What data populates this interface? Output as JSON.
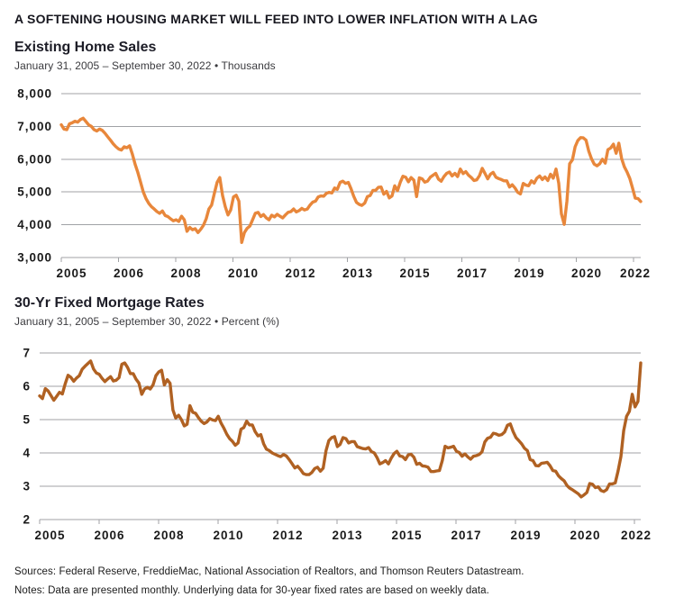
{
  "page": {
    "title": "A SOFTENING HOUSING MARKET WILL FEED INTO LOWER INFLATION WITH A LAG",
    "footer": {
      "sources": "Sources: Federal Reserve, FreddieMac, National Association of Realtors, and Thomson Reuters Datastream.",
      "notes": "Notes: Data are presented monthly. Underlying data for 30-year fixed rates are based on weekly data."
    }
  },
  "colors": {
    "grid": "#a0a2a5",
    "axis_text": "#1a1a1a",
    "home_sales_line": "#e8873b",
    "mortgage_line": "#b06122"
  },
  "chart_data": [
    {
      "type": "line",
      "title": "Existing Home Sales",
      "subtitle": "January 31, 2005 – September 30, 2022 • Thousands",
      "unit": "Thousands",
      "frequency": "monthly",
      "x_start": "2005-01",
      "x_end": "2022-09",
      "grid": true,
      "legend": "none",
      "ylim": [
        3000,
        8000
      ],
      "y_tick_labels": [
        "8,000",
        "7,000",
        "6,000",
        "5,000",
        "4,000",
        "3,000"
      ],
      "x_tick_labels": [
        "2005",
        "2006",
        "2008",
        "2010",
        "2012",
        "2013",
        "2015",
        "2017",
        "2019",
        "2020",
        "2022"
      ],
      "line_color": "#e8873b",
      "values": [
        7050,
        6920,
        6900,
        7080,
        7110,
        7160,
        7130,
        7210,
        7250,
        7150,
        7050,
        7000,
        6900,
        6860,
        6920,
        6880,
        6790,
        6680,
        6580,
        6470,
        6380,
        6310,
        6280,
        6380,
        6350,
        6410,
        6150,
        5850,
        5600,
        5300,
        5000,
        4800,
        4650,
        4550,
        4480,
        4400,
        4350,
        4420,
        4280,
        4250,
        4180,
        4120,
        4150,
        4100,
        4260,
        4150,
        3800,
        3920,
        3850,
        3880,
        3760,
        3860,
        3980,
        4180,
        4480,
        4600,
        4950,
        5290,
        5440,
        4900,
        4550,
        4300,
        4450,
        4850,
        4900,
        4720,
        3460,
        3760,
        3890,
        3960,
        4150,
        4350,
        4380,
        4250,
        4310,
        4210,
        4150,
        4290,
        4240,
        4320,
        4260,
        4210,
        4300,
        4380,
        4400,
        4480,
        4390,
        4430,
        4500,
        4450,
        4480,
        4600,
        4690,
        4720,
        4850,
        4880,
        4870,
        4960,
        4990,
        4970,
        5120,
        5080,
        5290,
        5330,
        5260,
        5290,
        5100,
        4870,
        4680,
        4620,
        4590,
        4660,
        4860,
        4890,
        5050,
        5050,
        5140,
        5150,
        4930,
        5020,
        4820,
        4880,
        5190,
        5040,
        5290,
        5480,
        5450,
        5310,
        5440,
        5360,
        4860,
        5430,
        5400,
        5300,
        5330,
        5450,
        5510,
        5570,
        5390,
        5330,
        5470,
        5570,
        5610,
        5490,
        5570,
        5470,
        5700,
        5560,
        5620,
        5510,
        5440,
        5350,
        5370,
        5500,
        5720,
        5570,
        5400,
        5540,
        5600,
        5450,
        5410,
        5380,
        5340,
        5340,
        5150,
        5220,
        5120,
        4990,
        4940,
        5260,
        5210,
        5190,
        5340,
        5270,
        5420,
        5490,
        5380,
        5460,
        5350,
        5540,
        5420,
        5700,
        5270,
        4330,
        4010,
        4720,
        5860,
        5980,
        6380,
        6570,
        6660,
        6650,
        6580,
        6240,
        6010,
        5850,
        5800,
        5860,
        6000,
        5880,
        6290,
        6340,
        6460,
        6180,
        6490,
        6020,
        5770,
        5610,
        5410,
        5120,
        4810,
        4800,
        4710
      ]
    },
    {
      "type": "line",
      "title": "30-Yr Fixed Mortgage Rates",
      "subtitle": "January 31, 2005 – September 30, 2022 • Percent (%)",
      "unit": "Percent (%)",
      "frequency": "monthly",
      "x_start": "2005-01",
      "x_end": "2022-09",
      "grid": true,
      "legend": "none",
      "ylim": [
        2,
        7
      ],
      "y_tick_labels": [
        "7",
        "6",
        "5",
        "4",
        "3",
        "2"
      ],
      "x_tick_labels": [
        "2005",
        "2006",
        "2008",
        "2010",
        "2012",
        "2013",
        "2015",
        "2017",
        "2019",
        "2020",
        "2022"
      ],
      "line_color": "#b06122",
      "values": [
        5.71,
        5.63,
        5.93,
        5.86,
        5.72,
        5.58,
        5.7,
        5.82,
        5.77,
        6.07,
        6.33,
        6.27,
        6.15,
        6.25,
        6.32,
        6.51,
        6.6,
        6.68,
        6.76,
        6.52,
        6.4,
        6.36,
        6.24,
        6.14,
        6.22,
        6.29,
        6.16,
        6.18,
        6.26,
        6.66,
        6.7,
        6.57,
        6.38,
        6.38,
        6.21,
        6.1,
        5.76,
        5.92,
        5.97,
        5.92,
        6.04,
        6.32,
        6.43,
        6.48,
        6.04,
        6.2,
        6.09,
        5.29,
        5.05,
        5.13,
        5.0,
        4.81,
        4.86,
        5.42,
        5.22,
        5.19,
        5.06,
        4.95,
        4.88,
        4.93,
        5.03,
        4.99,
        4.97,
        5.1,
        4.89,
        4.74,
        4.56,
        4.43,
        4.35,
        4.23,
        4.3,
        4.71,
        4.76,
        4.95,
        4.84,
        4.84,
        4.64,
        4.51,
        4.55,
        4.27,
        4.11,
        4.07,
        4.0,
        3.96,
        3.92,
        3.89,
        3.95,
        3.91,
        3.8,
        3.68,
        3.55,
        3.6,
        3.5,
        3.38,
        3.35,
        3.35,
        3.41,
        3.53,
        3.57,
        3.45,
        3.54,
        4.07,
        4.37,
        4.46,
        4.49,
        4.19,
        4.26,
        4.46,
        4.43,
        4.3,
        4.34,
        4.34,
        4.19,
        4.16,
        4.13,
        4.12,
        4.16,
        4.04,
        4.0,
        3.86,
        3.67,
        3.71,
        3.77,
        3.67,
        3.84,
        3.98,
        4.05,
        3.91,
        3.89,
        3.8,
        3.94,
        3.96,
        3.87,
        3.66,
        3.69,
        3.61,
        3.6,
        3.57,
        3.44,
        3.44,
        3.46,
        3.47,
        3.77,
        4.2,
        4.15,
        4.17,
        4.2,
        4.05,
        4.01,
        3.9,
        3.97,
        3.88,
        3.81,
        3.9,
        3.92,
        3.95,
        4.03,
        4.33,
        4.44,
        4.47,
        4.59,
        4.57,
        4.53,
        4.55,
        4.63,
        4.83,
        4.87,
        4.64,
        4.46,
        4.37,
        4.27,
        4.14,
        4.07,
        3.8,
        3.77,
        3.62,
        3.61,
        3.69,
        3.7,
        3.72,
        3.62,
        3.47,
        3.45,
        3.31,
        3.23,
        3.16,
        3.02,
        2.94,
        2.89,
        2.83,
        2.77,
        2.68,
        2.74,
        2.81,
        3.08,
        3.06,
        2.96,
        2.98,
        2.87,
        2.84,
        2.9,
        3.07,
        3.07,
        3.1,
        3.45,
        3.89,
        4.67,
        5.1,
        5.25,
        5.76,
        5.38,
        5.55,
        6.7
      ]
    }
  ]
}
